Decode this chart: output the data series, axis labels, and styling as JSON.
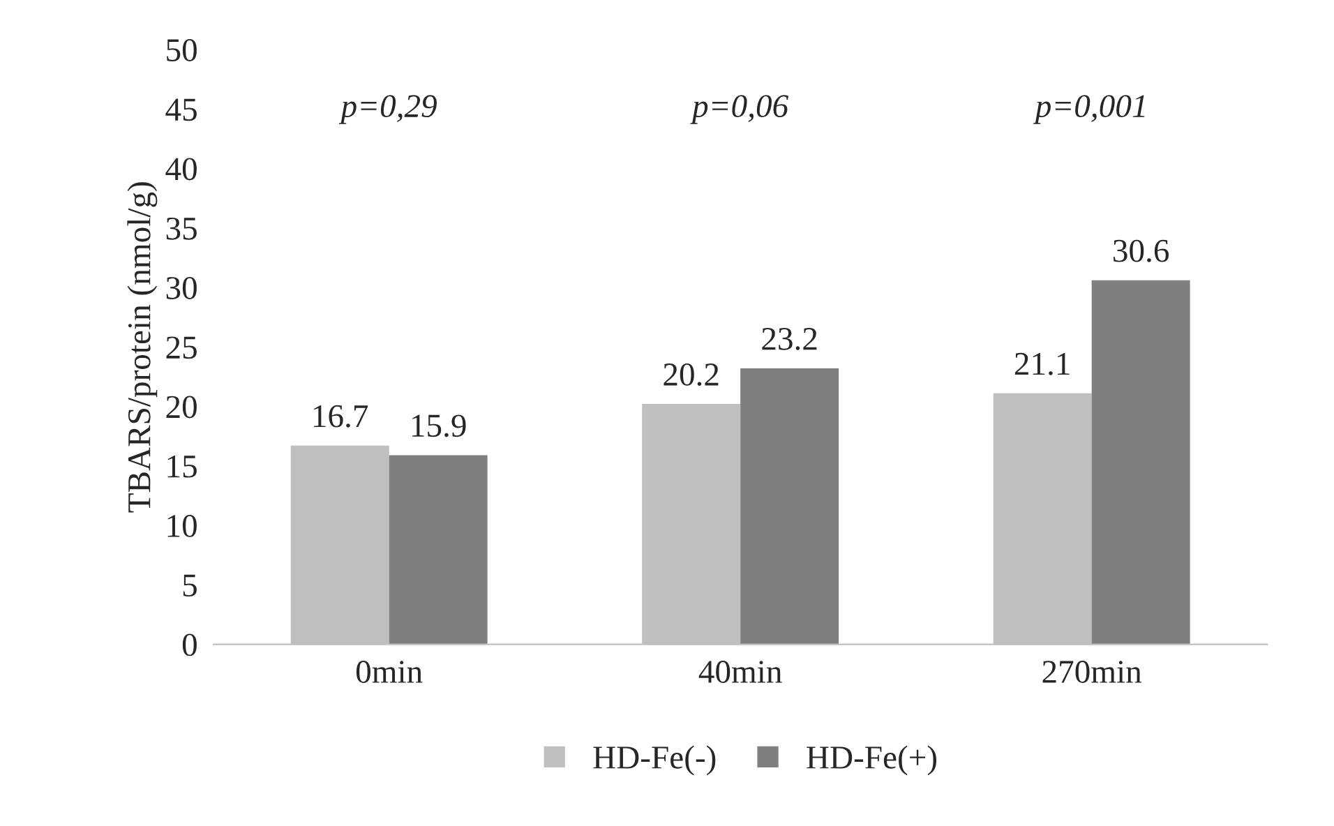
{
  "chart_data": {
    "type": "bar",
    "ylabel": "TBARS/protein (nmol/g)",
    "categories": [
      "0min",
      "40min",
      "270min"
    ],
    "series": [
      {
        "name": "HD-Fe(-)",
        "color": "#bfbfbf",
        "values": [
          16.7,
          20.2,
          21.1
        ]
      },
      {
        "name": "HD-Fe(+)",
        "color": "#7f7f7f",
        "values": [
          15.9,
          23.2,
          30.6
        ]
      }
    ],
    "annotations": [
      "p=0,29",
      "p=0,06",
      "p=0,001"
    ],
    "ylim": [
      0,
      50
    ],
    "yticks": [
      0,
      5,
      10,
      15,
      20,
      25,
      30,
      35,
      40,
      45,
      50
    ],
    "data_labels": true,
    "legend": "bottom",
    "grid": false
  }
}
